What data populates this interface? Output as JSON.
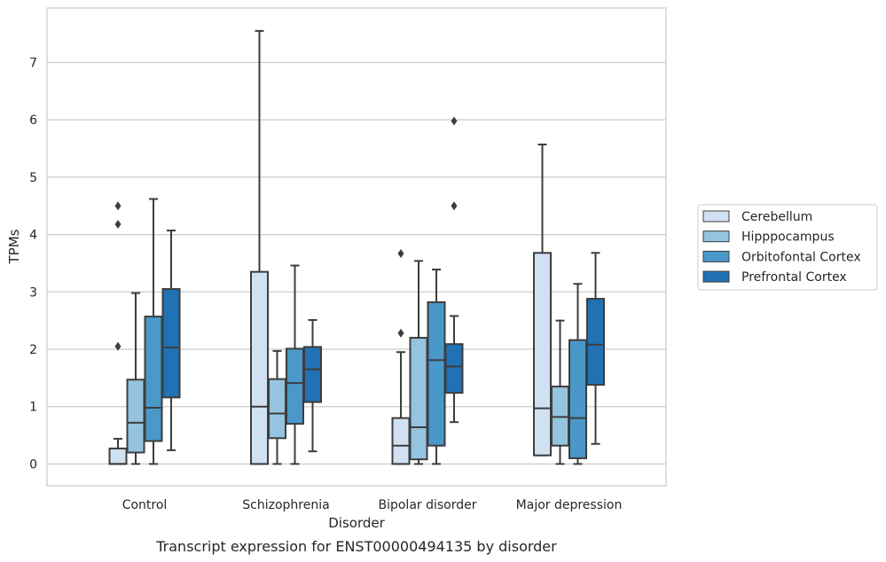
{
  "caption": "Transcript expression for ENST00000494135 by disorder",
  "chart_data": {
    "type": "box",
    "title": "",
    "xlabel": "Disorder",
    "ylabel": "TPMs",
    "ylim": [
      -0.38,
      7.95
    ],
    "yticks": [
      "0",
      "1",
      "2",
      "3",
      "4",
      "5",
      "6",
      "7"
    ],
    "grid": "horizontal",
    "legend_position": "right",
    "categories": [
      "Control",
      "Schizophrenia",
      "Bipolar disorder",
      "Major depression"
    ],
    "series": [
      {
        "name": "Cerebellum",
        "color": "#d0e1f2",
        "boxes": [
          {
            "whisker_low": 0,
            "q1": 0,
            "median": 0,
            "q3": 0.27,
            "whisker_high": 0.44,
            "outliers": [
              2.05,
              4.18,
              4.5
            ]
          },
          {
            "whisker_low": 0,
            "q1": 0,
            "median": 1.0,
            "q3": 3.35,
            "whisker_high": 7.55,
            "outliers": []
          },
          {
            "whisker_low": 0,
            "q1": 0,
            "median": 0.32,
            "q3": 0.8,
            "whisker_high": 1.95,
            "outliers": [
              2.28,
              3.67
            ]
          },
          {
            "whisker_low": 0.15,
            "q1": 0.15,
            "median": 0.97,
            "q3": 3.68,
            "whisker_high": 5.57,
            "outliers": []
          }
        ]
      },
      {
        "name": "Hipppocampus",
        "color": "#94c4df",
        "boxes": [
          {
            "whisker_low": 0,
            "q1": 0.2,
            "median": 0.72,
            "q3": 1.47,
            "whisker_high": 2.98,
            "outliers": []
          },
          {
            "whisker_low": 0,
            "q1": 0.45,
            "median": 0.88,
            "q3": 1.48,
            "whisker_high": 1.97,
            "outliers": []
          },
          {
            "whisker_low": 0,
            "q1": 0.08,
            "median": 0.64,
            "q3": 2.2,
            "whisker_high": 3.54,
            "outliers": []
          },
          {
            "whisker_low": 0,
            "q1": 0.32,
            "median": 0.82,
            "q3": 1.35,
            "whisker_high": 2.5,
            "outliers": []
          }
        ]
      },
      {
        "name": "Orbitofontal Cortex",
        "color": "#4a98c9",
        "boxes": [
          {
            "whisker_low": 0,
            "q1": 0.4,
            "median": 0.98,
            "q3": 2.57,
            "whisker_high": 4.62,
            "outliers": []
          },
          {
            "whisker_low": 0,
            "q1": 0.7,
            "median": 1.41,
            "q3": 2.01,
            "whisker_high": 3.46,
            "outliers": []
          },
          {
            "whisker_low": 0,
            "q1": 0.32,
            "median": 1.81,
            "q3": 2.82,
            "whisker_high": 3.39,
            "outliers": []
          },
          {
            "whisker_low": 0,
            "q1": 0.1,
            "median": 0.8,
            "q3": 2.16,
            "whisker_high": 3.14,
            "outliers": []
          }
        ]
      },
      {
        "name": "Prefrontal Cortex",
        "color": "#2171b5",
        "boxes": [
          {
            "whisker_low": 0.24,
            "q1": 1.16,
            "median": 2.03,
            "q3": 3.05,
            "whisker_high": 4.07,
            "outliers": []
          },
          {
            "whisker_low": 0.22,
            "q1": 1.08,
            "median": 1.65,
            "q3": 2.04,
            "whisker_high": 2.51,
            "outliers": []
          },
          {
            "whisker_low": 0.73,
            "q1": 1.24,
            "median": 1.7,
            "q3": 2.09,
            "whisker_high": 2.58,
            "outliers": [
              4.5,
              5.98
            ]
          },
          {
            "whisker_low": 0.35,
            "q1": 1.38,
            "median": 2.08,
            "q3": 2.88,
            "whisker_high": 3.68,
            "outliers": []
          }
        ]
      }
    ]
  }
}
